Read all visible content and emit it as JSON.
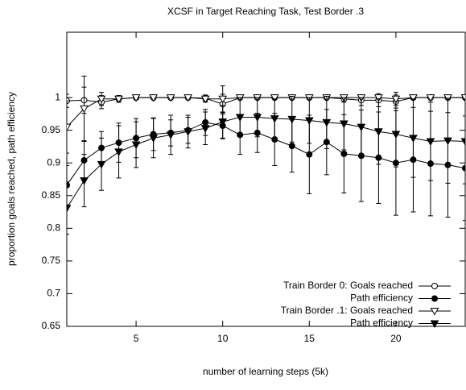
{
  "chart_data": {
    "type": "line",
    "title": "XCSF in Target Reaching Task, Test Border .3",
    "x_label": "number of learning steps (5k)",
    "y_label": "proportion goals reached, path efficiency",
    "x": [
      1,
      2,
      3,
      4,
      5,
      6,
      7,
      8,
      9,
      10,
      11,
      12,
      13,
      14,
      15,
      16,
      17,
      18,
      19,
      20,
      21,
      22,
      23,
      24
    ],
    "xlim": [
      1,
      24
    ],
    "xticks": [
      5,
      10,
      15,
      20
    ],
    "ylim": [
      0.65,
      1.1
    ],
    "yticks": [
      0.65,
      0.7,
      0.75,
      0.8,
      0.85,
      0.9,
      0.95,
      1
    ],
    "legend": "bottom-right",
    "series": [
      {
        "name": "Train Border 0: Goals reached",
        "color": "#000000",
        "marker": "circle",
        "filled": false,
        "values": [
          0.995,
          0.996,
          0.993,
          0.998,
          1,
          1,
          1,
          1,
          0.999,
          0.99,
          1,
          1,
          1,
          1,
          1,
          1,
          0.998,
          0.996,
          0.996,
          0.994,
          1,
          1,
          1,
          1
        ],
        "errors": [
          0.01,
          0.02,
          0.01,
          0.005,
          0.003,
          0,
          0,
          0,
          0.005,
          0.015,
          0,
          0,
          0,
          0,
          0,
          0,
          0.005,
          0.008,
          0.01,
          0.01,
          0,
          0,
          0,
          0
        ]
      },
      {
        "name": "Path efficiency",
        "color": "#000000",
        "marker": "circle",
        "filled": true,
        "values": [
          0.866,
          0.904,
          0.923,
          0.931,
          0.938,
          0.944,
          0.946,
          0.95,
          0.962,
          0.957,
          0.943,
          0.946,
          0.936,
          0.926,
          0.913,
          0.932,
          0.914,
          0.911,
          0.908,
          0.9,
          0.905,
          0.899,
          0.897,
          0.892
        ],
        "errors": [
          0.03,
          0.03,
          0.025,
          0.03,
          0.03,
          0.025,
          0.02,
          0.02,
          0.02,
          0.02,
          0.03,
          0.03,
          0.04,
          0.04,
          0.06,
          0.05,
          0.06,
          0.07,
          0.07,
          0.08,
          0.08,
          0.08,
          0.08,
          0.08
        ]
      },
      {
        "name": "Train Border .1: Goals reached",
        "color": "#000000",
        "marker": "triangle-down",
        "filled": false,
        "values": [
          0.955,
          0.983,
          0.998,
          0.998,
          1,
          1,
          1,
          1,
          0.998,
          0.998,
          1,
          1,
          1,
          1,
          1,
          1,
          1,
          1,
          1,
          0.998,
          1,
          1,
          1,
          1
        ],
        "errors": [
          0.04,
          0.05,
          0.01,
          0.005,
          0.003,
          0,
          0,
          0,
          0.005,
          0.02,
          0,
          0,
          0,
          0,
          0,
          0,
          0,
          0,
          0,
          0.01,
          0,
          0,
          0,
          0
        ]
      },
      {
        "name": "Path efficiency",
        "color": "#000000",
        "marker": "triangle-down",
        "filled": true,
        "values": [
          0.831,
          0.873,
          0.898,
          0.917,
          0.928,
          0.938,
          0.943,
          0.948,
          0.953,
          0.963,
          0.97,
          0.97,
          0.968,
          0.967,
          0.965,
          0.962,
          0.96,
          0.955,
          0.948,
          0.944,
          0.938,
          0.933,
          0.934,
          0.933
        ],
        "errors": [
          0.04,
          0.04,
          0.04,
          0.04,
          0.035,
          0.03,
          0.03,
          0.025,
          0.025,
          0.025,
          0.03,
          0.03,
          0.03,
          0.035,
          0.035,
          0.04,
          0.04,
          0.045,
          0.05,
          0.05,
          0.06,
          0.06,
          0.065,
          0.065
        ]
      }
    ]
  }
}
